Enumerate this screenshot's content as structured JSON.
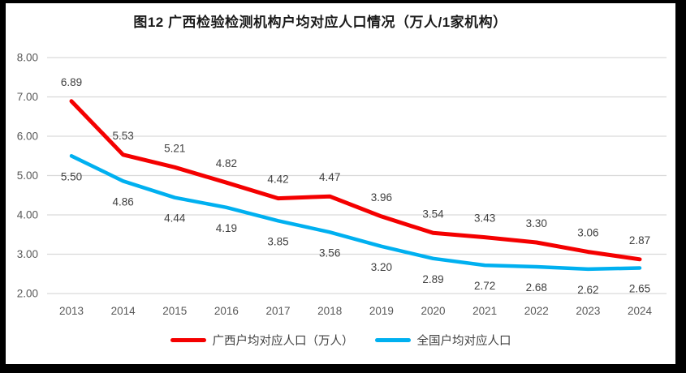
{
  "title": "图12 广西检验检测机构户均对应人口情况（万人/1家机构）",
  "frame": {
    "border_color": "#000000",
    "background": "#ffffff"
  },
  "chart_data": {
    "type": "line",
    "title": "图12 广西检验检测机构户均对应人口情况（万人/1家机构）",
    "categories": [
      "2013",
      "2014",
      "2015",
      "2016",
      "2017",
      "2018",
      "2019",
      "2020",
      "2021",
      "2022",
      "2023",
      "2024"
    ],
    "series": [
      {
        "name": "广西户均对应人口（万人）",
        "color": "#f40000",
        "values": [
          6.89,
          5.53,
          5.21,
          4.82,
          4.42,
          4.47,
          3.96,
          3.54,
          3.43,
          3.3,
          3.06,
          2.87
        ],
        "label_position": "above",
        "stroke_width": 5
      },
      {
        "name": "全国户均对应人口",
        "color": "#00b0f0",
        "values": [
          5.5,
          4.86,
          4.44,
          4.19,
          3.85,
          3.56,
          3.2,
          2.89,
          2.72,
          2.68,
          2.62,
          2.65
        ],
        "label_position": "below",
        "stroke_width": 4.5
      }
    ],
    "xlabel": "",
    "ylabel": "",
    "y_axis": {
      "min": 2.0,
      "max": 8.0,
      "tick_labels": [
        "8.00",
        "7.00",
        "6.00",
        "5.00",
        "4.00",
        "3.00",
        "2.00"
      ]
    },
    "grid": true,
    "legend_position": "bottom",
    "data_labels_shown": true,
    "colors": {
      "gridline": "#d9d9d9",
      "axis_text": "#595959",
      "data_label_text": "#404040"
    }
  },
  "legend": {
    "items": [
      {
        "label": "广西户均对应人口（万人）",
        "color": "#f40000"
      },
      {
        "label": "全国户均对应人口",
        "color": "#00b0f0"
      }
    ]
  }
}
